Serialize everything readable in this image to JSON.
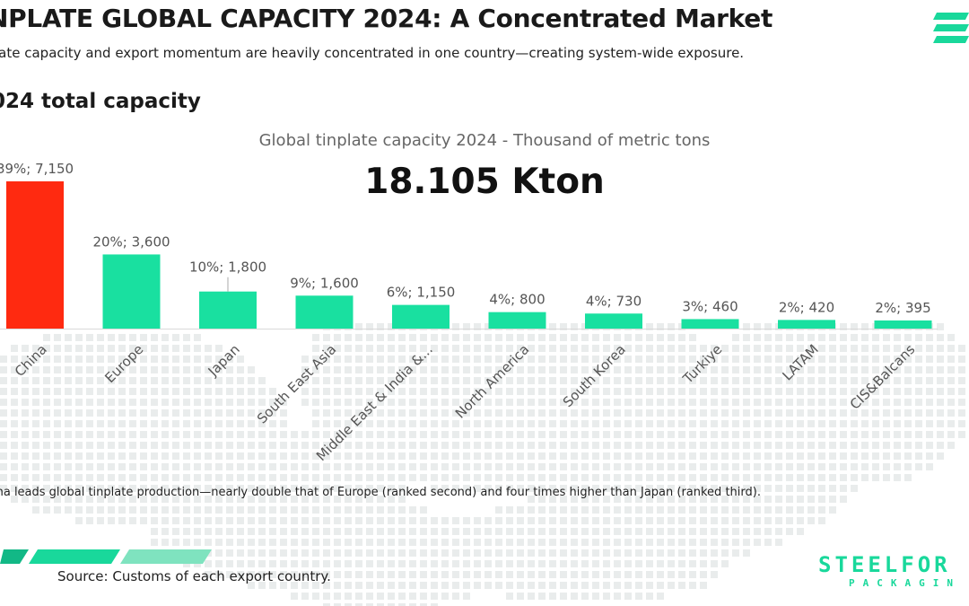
{
  "header": {
    "title": "NPLATE GLOBAL CAPACITY 2024: A Concentrated Market",
    "subtitle": "late capacity and export momentum are heavily concentrated in one country—creating system-wide exposure.",
    "section_title": "024 total capacity"
  },
  "chart_data": {
    "type": "bar",
    "title": "Global tinplate capacity 2024 - Thousand of metric tons",
    "total_label": "18.105 Kton",
    "categories": [
      "China",
      "Europe",
      "Japan",
      "South East Asia",
      "Middle East & India &...",
      "North America",
      "South Korea",
      "Turkiye",
      "LATAM",
      "CIS&Balcans"
    ],
    "values": [
      7150,
      3600,
      1800,
      1600,
      1150,
      800,
      730,
      460,
      420,
      395
    ],
    "data_labels": [
      "39%;  7,150",
      "20%;  3,600",
      "10%;  1,800",
      "9%;  1,600",
      "6%;  1,150",
      "4%;  800",
      "4%;  730",
      "3%;  460",
      "2%;  420",
      "2%;  395"
    ],
    "colors": [
      "#ff2a10",
      "#19e0a0",
      "#19e0a0",
      "#19e0a0",
      "#19e0a0",
      "#19e0a0",
      "#19e0a0",
      "#19e0a0",
      "#19e0a0",
      "#19e0a0"
    ],
    "ylim": [
      0,
      7150
    ],
    "grid": false,
    "xlabel": "",
    "ylabel": ""
  },
  "note": "ina leads global tinplate production—nearly double that of Europe (ranked second) and four times higher than Japan (ranked third).",
  "source": "Source: Customs of each export country.",
  "brand": {
    "name": "STEELFOR",
    "tagline": "PACKAGIN"
  },
  "colors": {
    "accent": "#19d89b",
    "highlight": "#ff2a10",
    "map": "#e9ecec"
  }
}
